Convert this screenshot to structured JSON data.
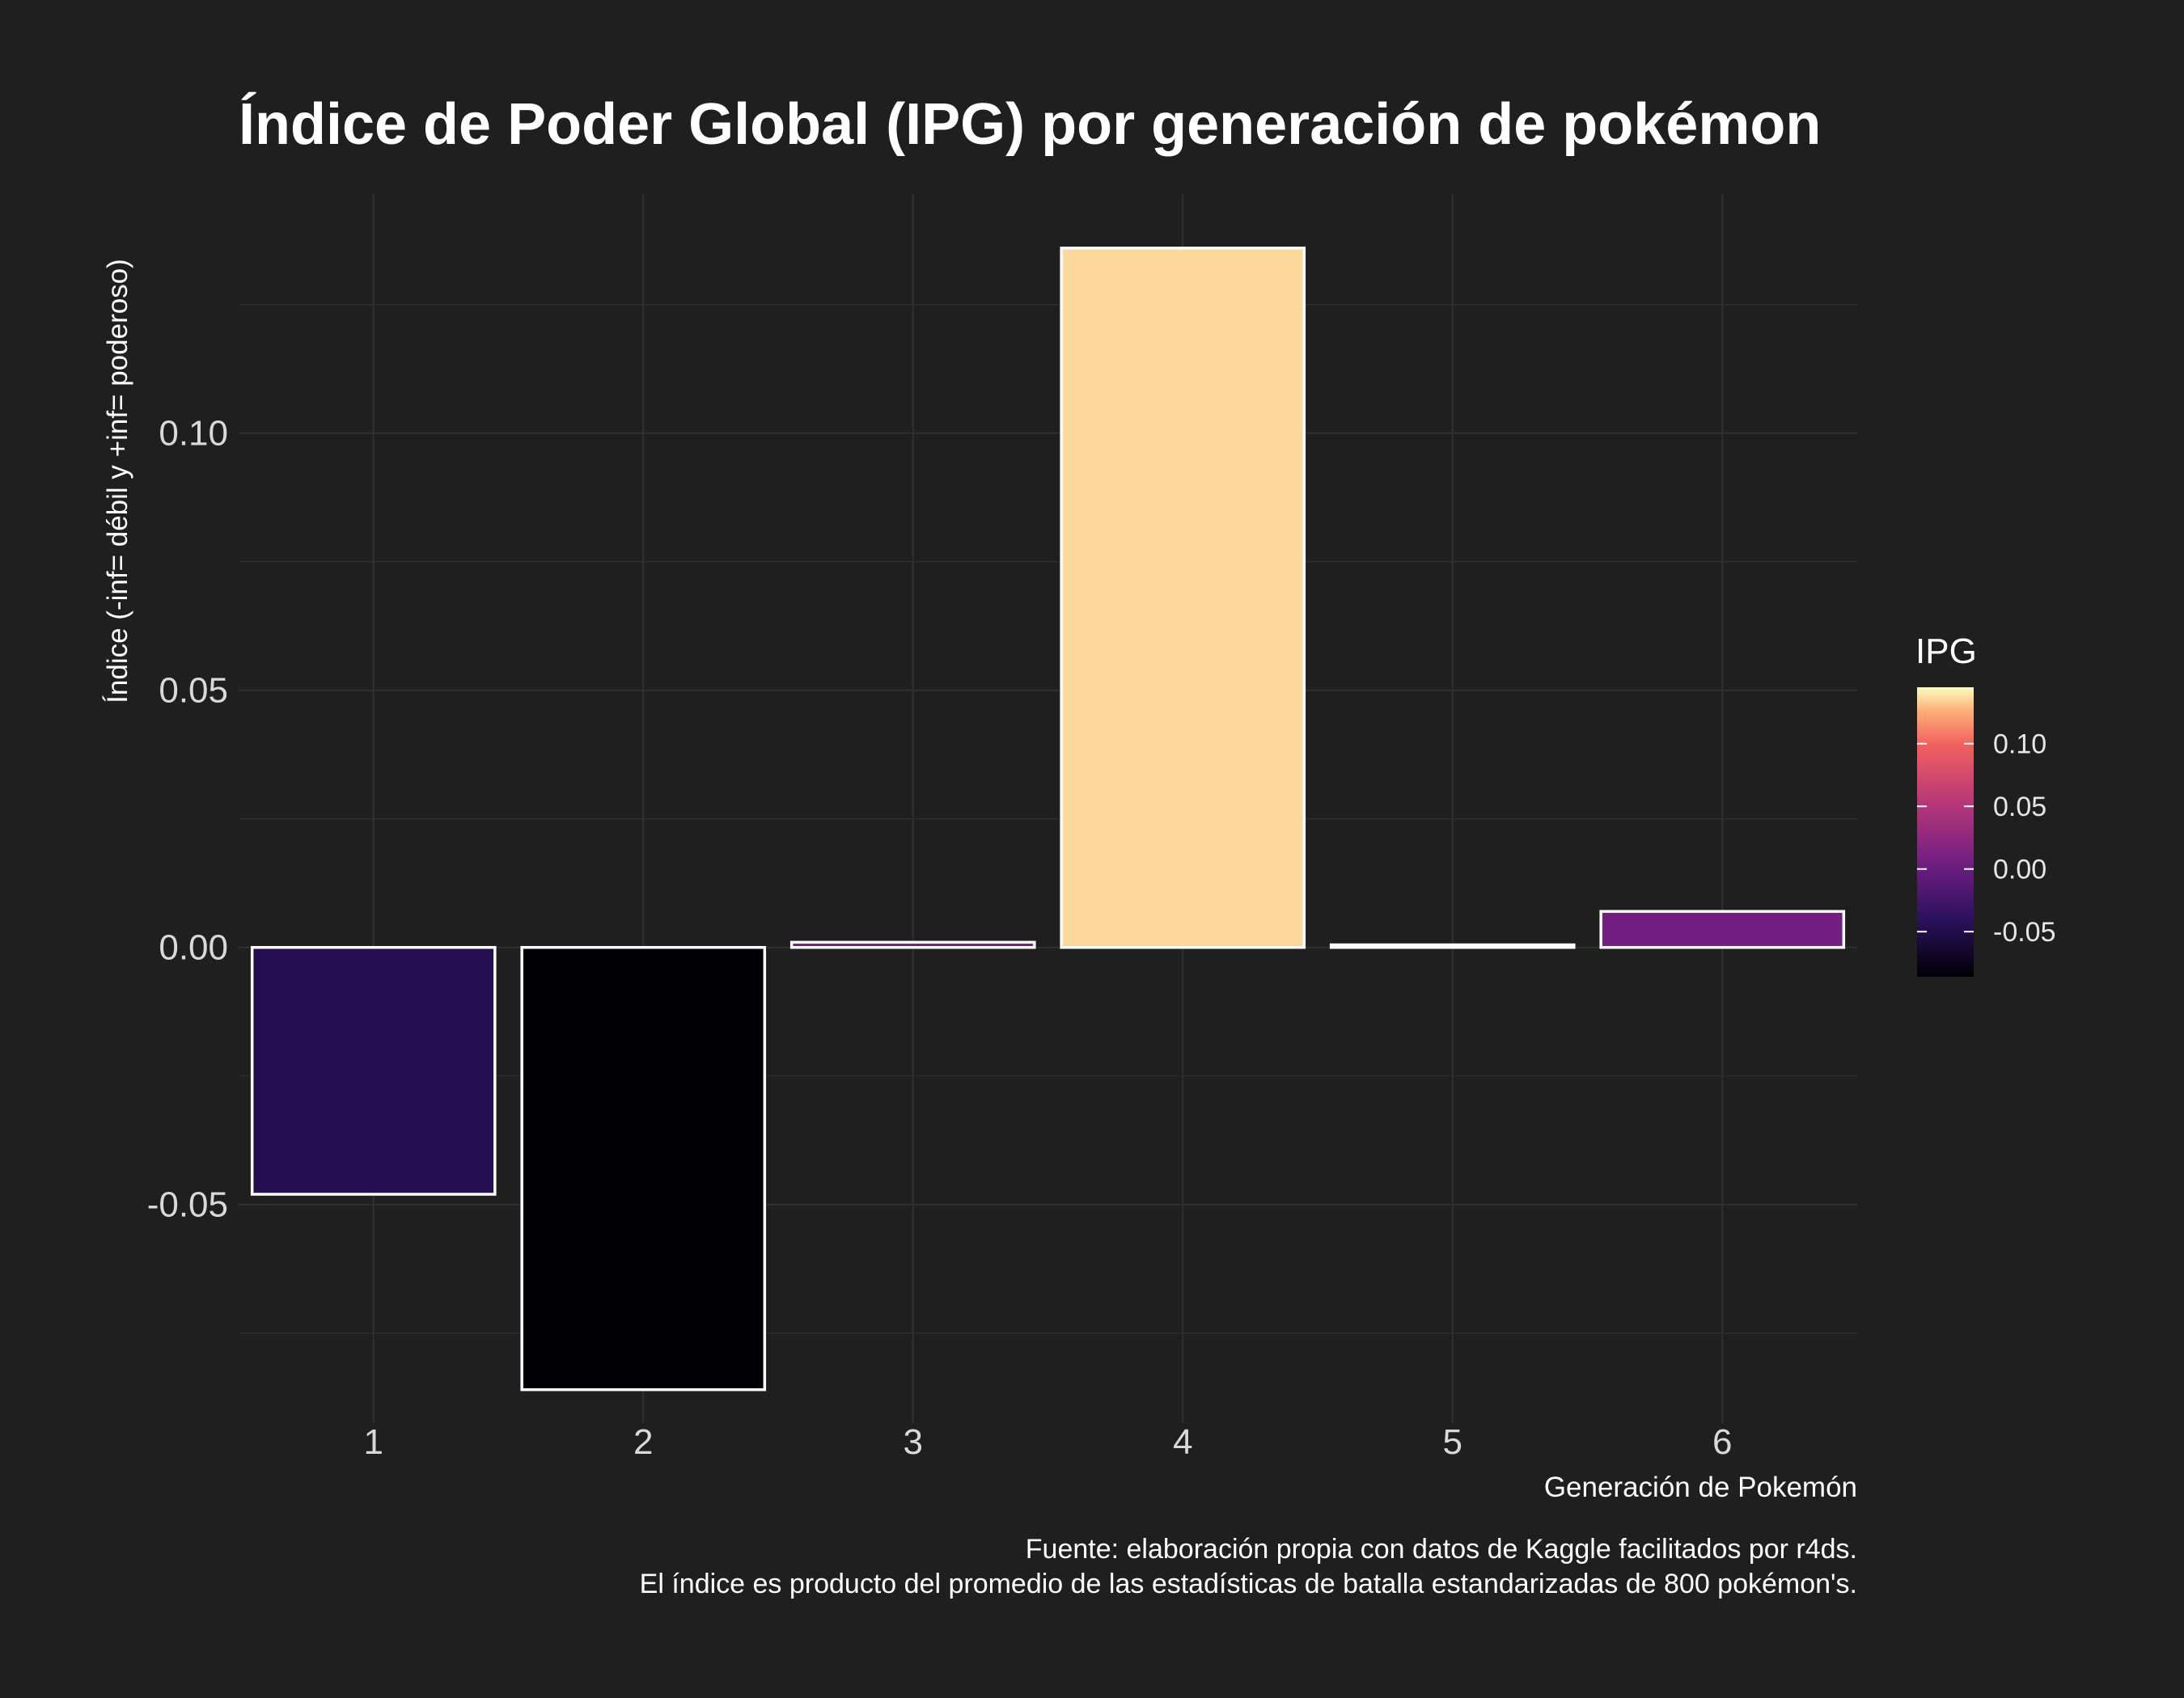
{
  "chart_data": {
    "type": "bar",
    "title": "Índice de Poder Global (IPG) por generación de pokémon",
    "xlabel": "Generación de Pokemón",
    "ylabel": "Índice (-inf= débil y +inf= poderoso)",
    "categories": [
      "1",
      "2",
      "3",
      "4",
      "5",
      "6"
    ],
    "values": [
      -0.048,
      -0.086,
      0.001,
      0.136,
      0.0005,
      0.007
    ],
    "ylim": [
      -0.0925,
      0.1465
    ],
    "yticks": [
      -0.05,
      0.0,
      0.05,
      0.1
    ],
    "ytick_labels": [
      "-0.05",
      "0.00",
      "0.05",
      "0.10"
    ],
    "grid": true,
    "caption": [
      "Fuente: elaboración propia con datos de Kaggle facilitados por r4ds.",
      "El índice es producto del promedio de las estadísticas de batalla estandarizadas de 800 pokémon's."
    ],
    "legend": {
      "title": "IPG",
      "placement": "right",
      "type": "colorbar",
      "palette": "magma",
      "range": [
        -0.086,
        0.145
      ],
      "ticks": [
        0.1,
        0.05,
        0.0,
        -0.05
      ],
      "tick_labels": [
        "0.10",
        "0.05",
        "0.00",
        "-0.05"
      ]
    },
    "colors": {
      "background": "#1f1f1f",
      "grid": "#303030",
      "bar_outline": "#ffffff"
    }
  }
}
